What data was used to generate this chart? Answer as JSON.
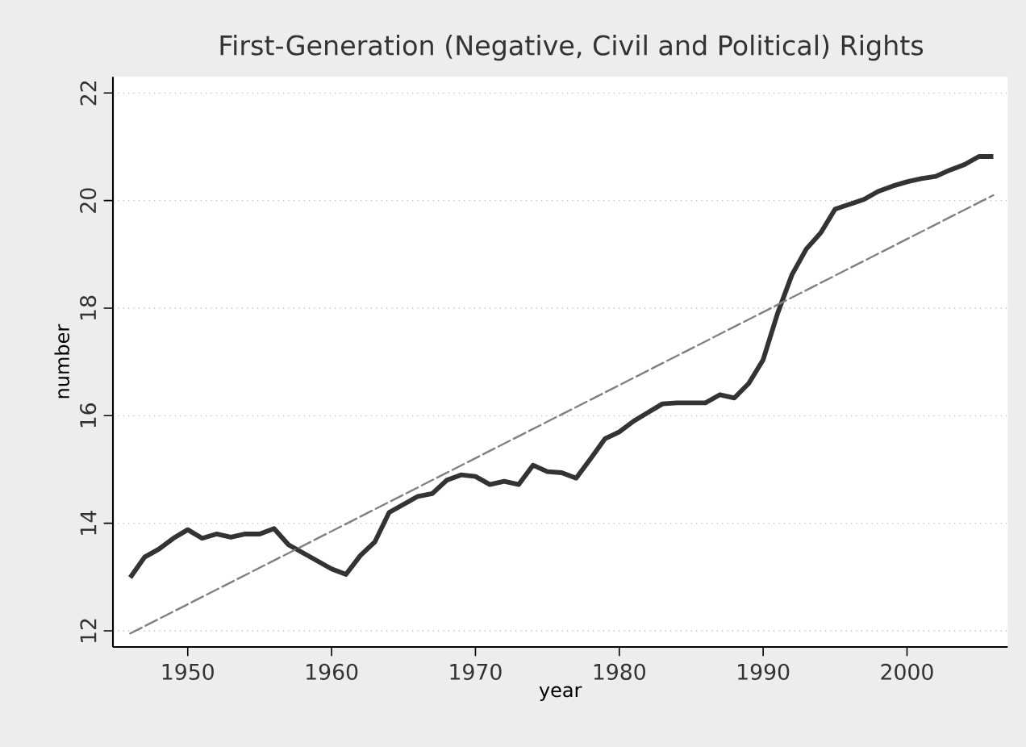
{
  "chart_data": {
    "type": "line",
    "title": "First-Generation (Negative, Civil and Political) Rights",
    "xlabel": "year",
    "ylabel": "number",
    "xlim": [
      1944.8,
      2007
    ],
    "ylim": [
      11.7,
      22.3
    ],
    "xticks": [
      1950,
      1960,
      1970,
      1980,
      1990,
      2000
    ],
    "yticks": [
      12,
      14,
      16,
      18,
      20,
      22
    ],
    "grid": "y",
    "marker": "none",
    "series": [
      {
        "color": "#333333",
        "line_style": "solid",
        "x": [
          1946,
          1947,
          1948,
          1949,
          1950,
          1951,
          1952,
          1953,
          1954,
          1955,
          1956,
          1957,
          1958,
          1959,
          1960,
          1961,
          1962,
          1963,
          1964,
          1965,
          1966,
          1967,
          1968,
          1969,
          1970,
          1971,
          1972,
          1973,
          1974,
          1975,
          1976,
          1977,
          1978,
          1979,
          1980,
          1981,
          1982,
          1983,
          1984,
          1985,
          1986,
          1987,
          1988,
          1989,
          1990,
          1991,
          1992,
          1993,
          1994,
          1995,
          1996,
          1997,
          1998,
          1999,
          2000,
          2001,
          2002,
          2003,
          2004,
          2005,
          2006
        ],
        "values": [
          12.99,
          13.37,
          13.52,
          13.72,
          13.88,
          13.72,
          13.8,
          13.74,
          13.8,
          13.8,
          13.9,
          13.6,
          13.45,
          13.3,
          13.15,
          13.05,
          13.4,
          13.65,
          14.2,
          14.35,
          14.5,
          14.55,
          14.8,
          14.9,
          14.87,
          14.72,
          14.78,
          14.72,
          15.08,
          14.96,
          14.94,
          14.84,
          15.2,
          15.57,
          15.7,
          15.9,
          16.06,
          16.22,
          16.24,
          16.24,
          16.24,
          16.39,
          16.33,
          16.6,
          17.04,
          17.9,
          18.62,
          19.1,
          19.4,
          19.84,
          19.93,
          20.02,
          20.17,
          20.27,
          20.35,
          20.41,
          20.45,
          20.57,
          20.67,
          20.82,
          20.82
        ]
      },
      {
        "color": "#808080",
        "line_style": "dashed",
        "x": [
          1946,
          2006
        ],
        "values": [
          11.95,
          20.1
        ]
      }
    ]
  }
}
